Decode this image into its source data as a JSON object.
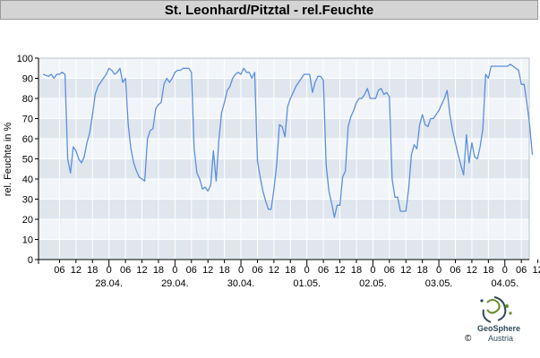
{
  "title": "St. Leonhard/Pitztal - rel.Feuchte",
  "copyright": "©",
  "logo": {
    "name": "GeoSphere",
    "sub": "Austria"
  },
  "colors": {
    "line": "#5b8fdc",
    "band_dark": "#dfe6ee",
    "band_light": "#f1f5fa",
    "grid": "#ffffff",
    "axis": "#000000"
  },
  "chart_data": {
    "type": "line",
    "title": "St. Leonhard/Pitztal - rel.Feuchte",
    "ylabel": "rel. Feuchte in %",
    "xlabel": "",
    "ylim": [
      0,
      100
    ],
    "yticks": [
      0,
      10,
      20,
      30,
      40,
      50,
      60,
      70,
      80,
      90,
      100
    ],
    "x_unit": "hours",
    "xlim": [
      0,
      173
    ],
    "hour_tick_labels": [
      "06",
      "12",
      "18",
      "0",
      "06",
      "12",
      "18",
      "0",
      "06",
      "12",
      "18",
      "0",
      "06",
      "12",
      "18",
      "0",
      "06",
      "12",
      "18",
      "0",
      "06",
      "12",
      "18",
      "0",
      "06",
      "12",
      "18",
      "0",
      "06",
      "12"
    ],
    "date_labels": [
      "28.04.",
      "29.04.",
      "30.04.",
      "01.05.",
      "02.05.",
      "03.05.",
      "04.05."
    ],
    "grid": true,
    "series": [
      {
        "values": [
          [
            0,
            92
          ],
          [
            2,
            91
          ],
          [
            3,
            92
          ],
          [
            4,
            90
          ],
          [
            5,
            92
          ],
          [
            6,
            92
          ],
          [
            7,
            93
          ],
          [
            8,
            92
          ],
          [
            9,
            50
          ],
          [
            10,
            43
          ],
          [
            11,
            56
          ],
          [
            12,
            54
          ],
          [
            13,
            50
          ],
          [
            14,
            48
          ],
          [
            15,
            51
          ],
          [
            16,
            58
          ],
          [
            17,
            63
          ],
          [
            18,
            72
          ],
          [
            19,
            82
          ],
          [
            20,
            86
          ],
          [
            21,
            88
          ],
          [
            22,
            90
          ],
          [
            23,
            92
          ],
          [
            24,
            95
          ],
          [
            25,
            94
          ],
          [
            26,
            92
          ],
          [
            27,
            93
          ],
          [
            28,
            95
          ],
          [
            29,
            88
          ],
          [
            30,
            90
          ],
          [
            31,
            67
          ],
          [
            32,
            55
          ],
          [
            33,
            48
          ],
          [
            34,
            44
          ],
          [
            35,
            41
          ],
          [
            36,
            40
          ],
          [
            37,
            39
          ],
          [
            38,
            60
          ],
          [
            39,
            64
          ],
          [
            40,
            65
          ],
          [
            41,
            75
          ],
          [
            42,
            77
          ],
          [
            43,
            78
          ],
          [
            44,
            87
          ],
          [
            45,
            90
          ],
          [
            46,
            88
          ],
          [
            47,
            90
          ],
          [
            48,
            93
          ],
          [
            49,
            94
          ],
          [
            50,
            94
          ],
          [
            51,
            95
          ],
          [
            52,
            95
          ],
          [
            53,
            95
          ],
          [
            54,
            93
          ],
          [
            55,
            55
          ],
          [
            56,
            43
          ],
          [
            57,
            40
          ],
          [
            58,
            35
          ],
          [
            59,
            36
          ],
          [
            60,
            34
          ],
          [
            61,
            37
          ],
          [
            62,
            54
          ],
          [
            63,
            39
          ],
          [
            64,
            60
          ],
          [
            65,
            73
          ],
          [
            66,
            78
          ],
          [
            67,
            84
          ],
          [
            68,
            86
          ],
          [
            69,
            90
          ],
          [
            70,
            92
          ],
          [
            71,
            93
          ],
          [
            72,
            92
          ],
          [
            73,
            95
          ],
          [
            74,
            93
          ],
          [
            75,
            93
          ],
          [
            76,
            90
          ],
          [
            77,
            93
          ],
          [
            78,
            49
          ],
          [
            79,
            41
          ],
          [
            80,
            34
          ],
          [
            81,
            29
          ],
          [
            82,
            25
          ],
          [
            83,
            25
          ],
          [
            84,
            35
          ],
          [
            85,
            47
          ],
          [
            86,
            67
          ],
          [
            87,
            66
          ],
          [
            88,
            61
          ],
          [
            89,
            76
          ],
          [
            90,
            80
          ],
          [
            91,
            83
          ],
          [
            92,
            86
          ],
          [
            93,
            88
          ],
          [
            94,
            90
          ],
          [
            95,
            92
          ],
          [
            96,
            92
          ],
          [
            97,
            92
          ],
          [
            98,
            83
          ],
          [
            99,
            88
          ],
          [
            100,
            91
          ],
          [
            101,
            91
          ],
          [
            102,
            89
          ],
          [
            103,
            47
          ],
          [
            104,
            34
          ],
          [
            105,
            28
          ],
          [
            106,
            21
          ],
          [
            107,
            27
          ],
          [
            108,
            27
          ],
          [
            109,
            41
          ],
          [
            110,
            44
          ],
          [
            111,
            66
          ],
          [
            112,
            71
          ],
          [
            113,
            74
          ],
          [
            114,
            78
          ],
          [
            115,
            80
          ],
          [
            116,
            80
          ],
          [
            117,
            82
          ],
          [
            118,
            85
          ],
          [
            119,
            80
          ],
          [
            120,
            80
          ],
          [
            121,
            80
          ],
          [
            122,
            84
          ],
          [
            123,
            85
          ],
          [
            124,
            82
          ],
          [
            125,
            83
          ],
          [
            126,
            81
          ],
          [
            127,
            40
          ],
          [
            128,
            31
          ],
          [
            129,
            31
          ],
          [
            130,
            24
          ],
          [
            131,
            24
          ],
          [
            132,
            24
          ],
          [
            133,
            35
          ],
          [
            134,
            52
          ],
          [
            135,
            57
          ],
          [
            136,
            55
          ],
          [
            137,
            67
          ],
          [
            138,
            72
          ],
          [
            139,
            67
          ],
          [
            140,
            66
          ],
          [
            141,
            70
          ],
          [
            142,
            70
          ],
          [
            143,
            72
          ],
          [
            144,
            74
          ],
          [
            145,
            77
          ],
          [
            146,
            80
          ],
          [
            147,
            84
          ],
          [
            148,
            72
          ],
          [
            149,
            64
          ],
          [
            150,
            58
          ],
          [
            151,
            52
          ],
          [
            152,
            47
          ],
          [
            153,
            42
          ],
          [
            154,
            62
          ],
          [
            155,
            48
          ],
          [
            156,
            58
          ],
          [
            157,
            51
          ],
          [
            158,
            50
          ],
          [
            159,
            56
          ],
          [
            160,
            65
          ],
          [
            161,
            92
          ],
          [
            162,
            90
          ],
          [
            163,
            96
          ],
          [
            164,
            96
          ],
          [
            165,
            96
          ],
          [
            166,
            96
          ],
          [
            167,
            96
          ],
          [
            168,
            96
          ],
          [
            169,
            96
          ],
          [
            170,
            97
          ],
          [
            171,
            96
          ],
          [
            172,
            95
          ],
          [
            173,
            94
          ],
          [
            174,
            87
          ],
          [
            175,
            87
          ],
          [
            176,
            78
          ],
          [
            177,
            67
          ],
          [
            178,
            52
          ]
        ]
      }
    ]
  }
}
